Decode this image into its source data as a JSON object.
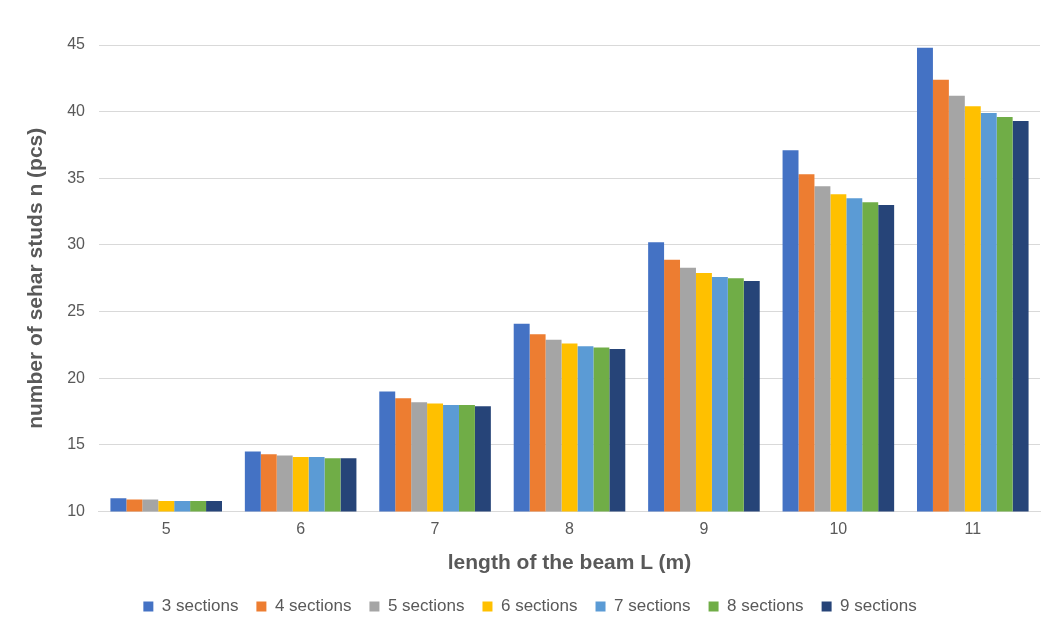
{
  "chart_data": {
    "type": "bar",
    "xlabel": "length of the beam L (m)",
    "ylabel": "number of sehar studs n (pcs)",
    "categories": [
      "5",
      "6",
      "7",
      "8",
      "9",
      "10",
      "11"
    ],
    "series": [
      {
        "name": "3 sections",
        "color": "#4472c4",
        "values": [
          11.0,
          14.5,
          19.0,
          24.1,
          30.2,
          37.1,
          44.8
        ]
      },
      {
        "name": "4 sections",
        "color": "#ed7d31",
        "values": [
          10.9,
          14.3,
          18.5,
          23.3,
          28.9,
          35.3,
          42.4
        ]
      },
      {
        "name": "5 sections",
        "color": "#a5a5a5",
        "values": [
          10.9,
          14.2,
          18.2,
          22.9,
          28.3,
          34.4,
          41.2
        ]
      },
      {
        "name": "6 sections",
        "color": "#ffc000",
        "values": [
          10.8,
          14.1,
          18.1,
          22.6,
          27.9,
          33.8,
          40.4
        ]
      },
      {
        "name": "7 sections",
        "color": "#5b9bd5",
        "values": [
          10.8,
          14.1,
          18.0,
          22.4,
          27.6,
          33.5,
          39.9
        ]
      },
      {
        "name": "8 sections",
        "color": "#70ad47",
        "values": [
          10.8,
          14.0,
          18.0,
          22.3,
          27.5,
          33.2,
          39.6
        ]
      },
      {
        "name": "9 sections",
        "color": "#264478",
        "values": [
          10.8,
          14.0,
          17.9,
          22.2,
          27.3,
          33.0,
          39.3
        ]
      }
    ],
    "ylim": [
      10,
      45
    ],
    "yticks": [
      10,
      15,
      20,
      25,
      30,
      35,
      40,
      45
    ],
    "grid": "y",
    "legend": "bottom"
  }
}
